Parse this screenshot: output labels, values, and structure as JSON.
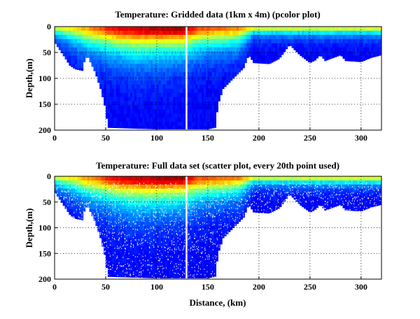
{
  "chart_data": [
    {
      "type": "heatmap",
      "title": "Temperature: Gridded data (1km x 4m) (pcolor plot)",
      "xlabel": "",
      "ylabel": "Depth,(m)",
      "xlim": [
        0,
        320
      ],
      "ylim": [
        200,
        0
      ],
      "xticks": [
        "0",
        "50",
        "100",
        "150",
        "200",
        "250",
        "300"
      ],
      "yticks": [
        "0",
        "50",
        "100",
        "150",
        "200"
      ],
      "grid": true,
      "colormap": "jet"
    },
    {
      "type": "scatter",
      "title": "Temperature: Full data set (scatter plot, every 20th point used)",
      "xlabel": "Distance, (km)",
      "ylabel": "Depth,(m)",
      "xlim": [
        0,
        320
      ],
      "ylim": [
        200,
        0
      ],
      "xticks": [
        "0",
        "50",
        "100",
        "150",
        "200",
        "250",
        "300"
      ],
      "yticks": [
        "0",
        "50",
        "100",
        "150",
        "200"
      ],
      "grid": true,
      "colormap": "jet"
    }
  ],
  "section": {
    "bottom_depth_profile": [
      [
        0,
        30
      ],
      [
        5,
        45
      ],
      [
        10,
        60
      ],
      [
        15,
        75
      ],
      [
        20,
        82
      ],
      [
        27,
        85
      ],
      [
        30,
        60
      ],
      [
        33,
        60
      ],
      [
        40,
        90
      ],
      [
        45,
        120
      ],
      [
        50,
        160
      ],
      [
        52,
        195
      ],
      [
        100,
        198
      ],
      [
        125,
        198
      ],
      [
        150,
        198
      ],
      [
        157,
        195
      ],
      [
        160,
        150
      ],
      [
        165,
        120
      ],
      [
        175,
        100
      ],
      [
        185,
        80
      ],
      [
        190,
        55
      ],
      [
        195,
        70
      ],
      [
        210,
        72
      ],
      [
        220,
        62
      ],
      [
        230,
        35
      ],
      [
        240,
        55
      ],
      [
        250,
        70
      ],
      [
        255,
        65
      ],
      [
        260,
        55
      ],
      [
        265,
        66
      ],
      [
        280,
        55
      ],
      [
        285,
        66
      ],
      [
        300,
        68
      ],
      [
        310,
        60
      ],
      [
        320,
        55
      ]
    ],
    "surface_warmth": [
      [
        0,
        0.55
      ],
      [
        30,
        0.7
      ],
      [
        60,
        0.88
      ],
      [
        100,
        0.95
      ],
      [
        125,
        0.97
      ],
      [
        140,
        0.8
      ],
      [
        180,
        0.75
      ],
      [
        195,
        0.6
      ],
      [
        320,
        0.62
      ]
    ],
    "warm_layer_depth_m": [
      [
        0,
        12
      ],
      [
        30,
        25
      ],
      [
        80,
        32
      ],
      [
        130,
        28
      ],
      [
        180,
        22
      ],
      [
        195,
        10
      ],
      [
        320,
        10
      ]
    ],
    "gap_columns_km": [
      128,
      129
    ]
  }
}
